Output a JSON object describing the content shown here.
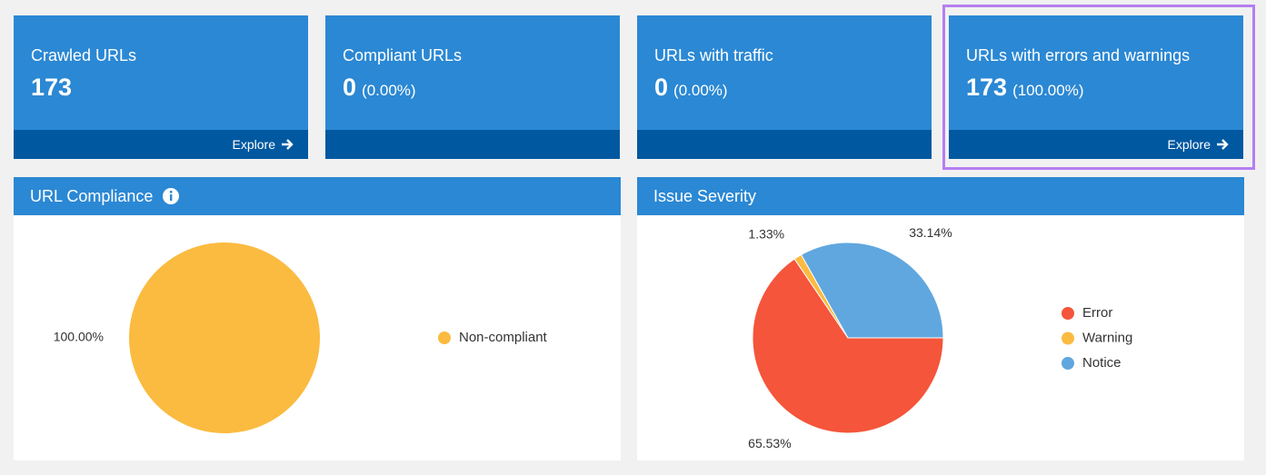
{
  "cards": [
    {
      "label": "Crawled URLs",
      "value": 173,
      "link": "Explore"
    },
    {
      "label": "Compliant URLs",
      "value": 0,
      "percent": "(0.00%)"
    },
    {
      "label": "URLs with traffic",
      "value": 0,
      "percent": "(0.00%)"
    },
    {
      "label": "URLs with errors and warnings",
      "value": 173,
      "percent": "(100.00%)",
      "link": "Explore"
    }
  ],
  "chart_data": [
    {
      "type": "pie",
      "title": "URL Compliance",
      "categories": [
        "Non-compliant"
      ],
      "values": [
        100
      ],
      "value_labels": [
        "100.00%"
      ],
      "colors": [
        "#fbbb40"
      ]
    },
    {
      "type": "pie",
      "title": "Issue Severity",
      "categories": [
        "Error",
        "Warning",
        "Notice"
      ],
      "values": [
        65.53,
        1.33,
        33.14
      ],
      "value_labels": [
        "65.53%",
        "1.33%",
        "33.14%"
      ],
      "colors": [
        "#f5553a",
        "#fbbb40",
        "#60a7df"
      ]
    }
  ]
}
